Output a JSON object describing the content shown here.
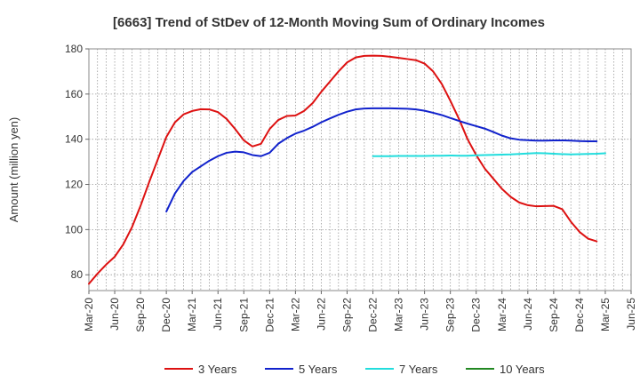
{
  "chart_data": {
    "type": "line",
    "title": "[6663]  Trend of StDev of 12-Month Moving Sum of Ordinary Incomes",
    "xlabel": "",
    "ylabel": "Amount (million yen)",
    "ylim": [
      73,
      180
    ],
    "yticks": [
      80,
      100,
      120,
      140,
      160,
      180
    ],
    "xticks": [
      "Mar-20",
      "Jun-20",
      "Sep-20",
      "Dec-20",
      "Mar-21",
      "Jun-21",
      "Sep-21",
      "Dec-21",
      "Mar-22",
      "Jun-22",
      "Sep-22",
      "Dec-22",
      "Mar-23",
      "Jun-23",
      "Sep-23",
      "Dec-23",
      "Mar-24",
      "Jun-24",
      "Sep-24",
      "Dec-24",
      "Mar-25",
      "Jun-25"
    ],
    "x_range_months": [
      0,
      63
    ],
    "grid": true,
    "legend_position": "bottom",
    "series": [
      {
        "name": "3 Years",
        "color": "#dd1111",
        "start_month": 0,
        "values": [
          76,
          80.5,
          84.5,
          88,
          93.5,
          101,
          110.5,
          121,
          131,
          141,
          147.5,
          151,
          152.5,
          153.3,
          153.2,
          152,
          149,
          144.5,
          139.5,
          136.8,
          138,
          144.5,
          148.5,
          150.3,
          150.5,
          152.5,
          156,
          161,
          165.5,
          170,
          174,
          176.2,
          176.9,
          177,
          176.9,
          176.5,
          176,
          175.5,
          175,
          173.5,
          170,
          164.5,
          157,
          149,
          140,
          133,
          127,
          122.5,
          118,
          114.5,
          112,
          110.8,
          110.3,
          110.4,
          110.5,
          109,
          103.5,
          99,
          96,
          94.8
        ]
      },
      {
        "name": "5 Years",
        "color": "#1122cc",
        "start_month": 9,
        "values": [
          108,
          116,
          121.5,
          125.5,
          128,
          130.5,
          132.5,
          134,
          134.5,
          134.2,
          133,
          132.5,
          134,
          138,
          140.5,
          142.5,
          143.8,
          145.5,
          147.5,
          149.2,
          150.8,
          152.2,
          153.2,
          153.6,
          153.7,
          153.7,
          153.7,
          153.6,
          153.5,
          153.2,
          152.6,
          151.7,
          150.7,
          149.4,
          148.1,
          146.9,
          145.8,
          144.7,
          143.2,
          141.6,
          140.4,
          139.8,
          139.6,
          139.4,
          139.4,
          139.5,
          139.5,
          139.4,
          139.2,
          139.1,
          139.1
        ]
      },
      {
        "name": "7 Years",
        "color": "#22dddd",
        "start_month": 33,
        "values": [
          132.5,
          132.5,
          132.5,
          132.6,
          132.6,
          132.6,
          132.6,
          132.7,
          132.7,
          132.8,
          132.7,
          132.7,
          132.9,
          133,
          133.1,
          133.2,
          133.3,
          133.5,
          133.7,
          133.9,
          133.8,
          133.6,
          133.4,
          133.3,
          133.4,
          133.5,
          133.6,
          133.8
        ]
      },
      {
        "name": "10 Years",
        "color": "#228822",
        "start_month": 0,
        "values": []
      }
    ]
  }
}
